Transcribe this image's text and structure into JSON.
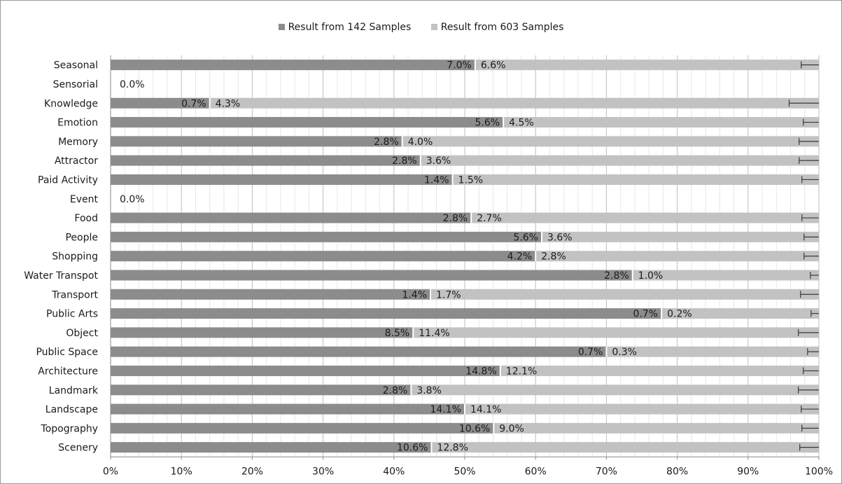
{
  "chart_data": {
    "type": "bar",
    "stacked": "percent",
    "orientation": "horizontal",
    "categories": [
      "Seasonal",
      "Sensorial",
      "Knowledge",
      "Emotion",
      "Memory",
      "Attractor",
      "Paid Activity",
      "Event",
      "Food",
      "People",
      "Shopping",
      "Water Transpot",
      "Transport",
      "Public Arts",
      "Object",
      "Public Space",
      "Architecture",
      "Landmark",
      "Landscape ",
      "Topography",
      "Scenery"
    ],
    "series": [
      {
        "name": "Result from 142 Samples",
        "color": "#8c8c8c",
        "values": [
          7.0,
          0.0,
          0.7,
          5.6,
          2.8,
          2.8,
          1.4,
          0.0,
          2.8,
          5.6,
          4.2,
          2.8,
          1.4,
          0.7,
          8.5,
          0.7,
          14.8,
          2.8,
          14.1,
          10.6,
          10.6
        ],
        "labels": [
          "7.0%",
          "0.0%",
          "0.7%",
          "5.6%",
          "2.8%",
          "2.8%",
          "1.4%",
          "0.0%",
          "2.8%",
          "5.6%",
          "4.2%",
          "2.8%",
          "1.4%",
          "0.7%",
          "8.5%",
          "0.7%",
          "14.8%",
          "2.8%",
          "14.1%",
          "10.6%",
          "10.6%"
        ]
      },
      {
        "name": "Result from 603 Samples",
        "color": "#c2c2c2",
        "values": [
          6.6,
          0.0,
          4.3,
          4.5,
          4.0,
          3.6,
          1.5,
          0.0,
          2.7,
          3.6,
          2.8,
          1.0,
          1.7,
          0.2,
          11.4,
          0.3,
          12.1,
          3.8,
          14.1,
          9.0,
          12.8
        ],
        "labels": [
          "6.6%",
          "",
          "4.3%",
          "4.5%",
          "4.0%",
          "3.6%",
          "1.5%",
          "",
          "2.7%",
          "3.6%",
          "2.8%",
          "1.0%",
          "1.7%",
          "0.2%",
          "11.4%",
          "0.3%",
          "12.1%",
          "3.8%",
          "14.1%",
          "9.0%",
          "12.8%"
        ]
      }
    ],
    "error_bar_start": [
      97.5,
      null,
      95.8,
      97.8,
      97.2,
      97.2,
      97.6,
      null,
      97.6,
      97.9,
      97.9,
      98.8,
      97.4,
      98.9,
      97.1,
      98.4,
      97.8,
      97.1,
      97.5,
      97.6,
      97.3
    ],
    "xlim": [
      0,
      100
    ],
    "xticks": [
      "0%",
      "10%",
      "20%",
      "30%",
      "40%",
      "50%",
      "60%",
      "70%",
      "80%",
      "90%",
      "100%"
    ],
    "xlabel": "",
    "ylabel": "",
    "title": "",
    "grid": "vertical",
    "legend_position": "top-center"
  }
}
